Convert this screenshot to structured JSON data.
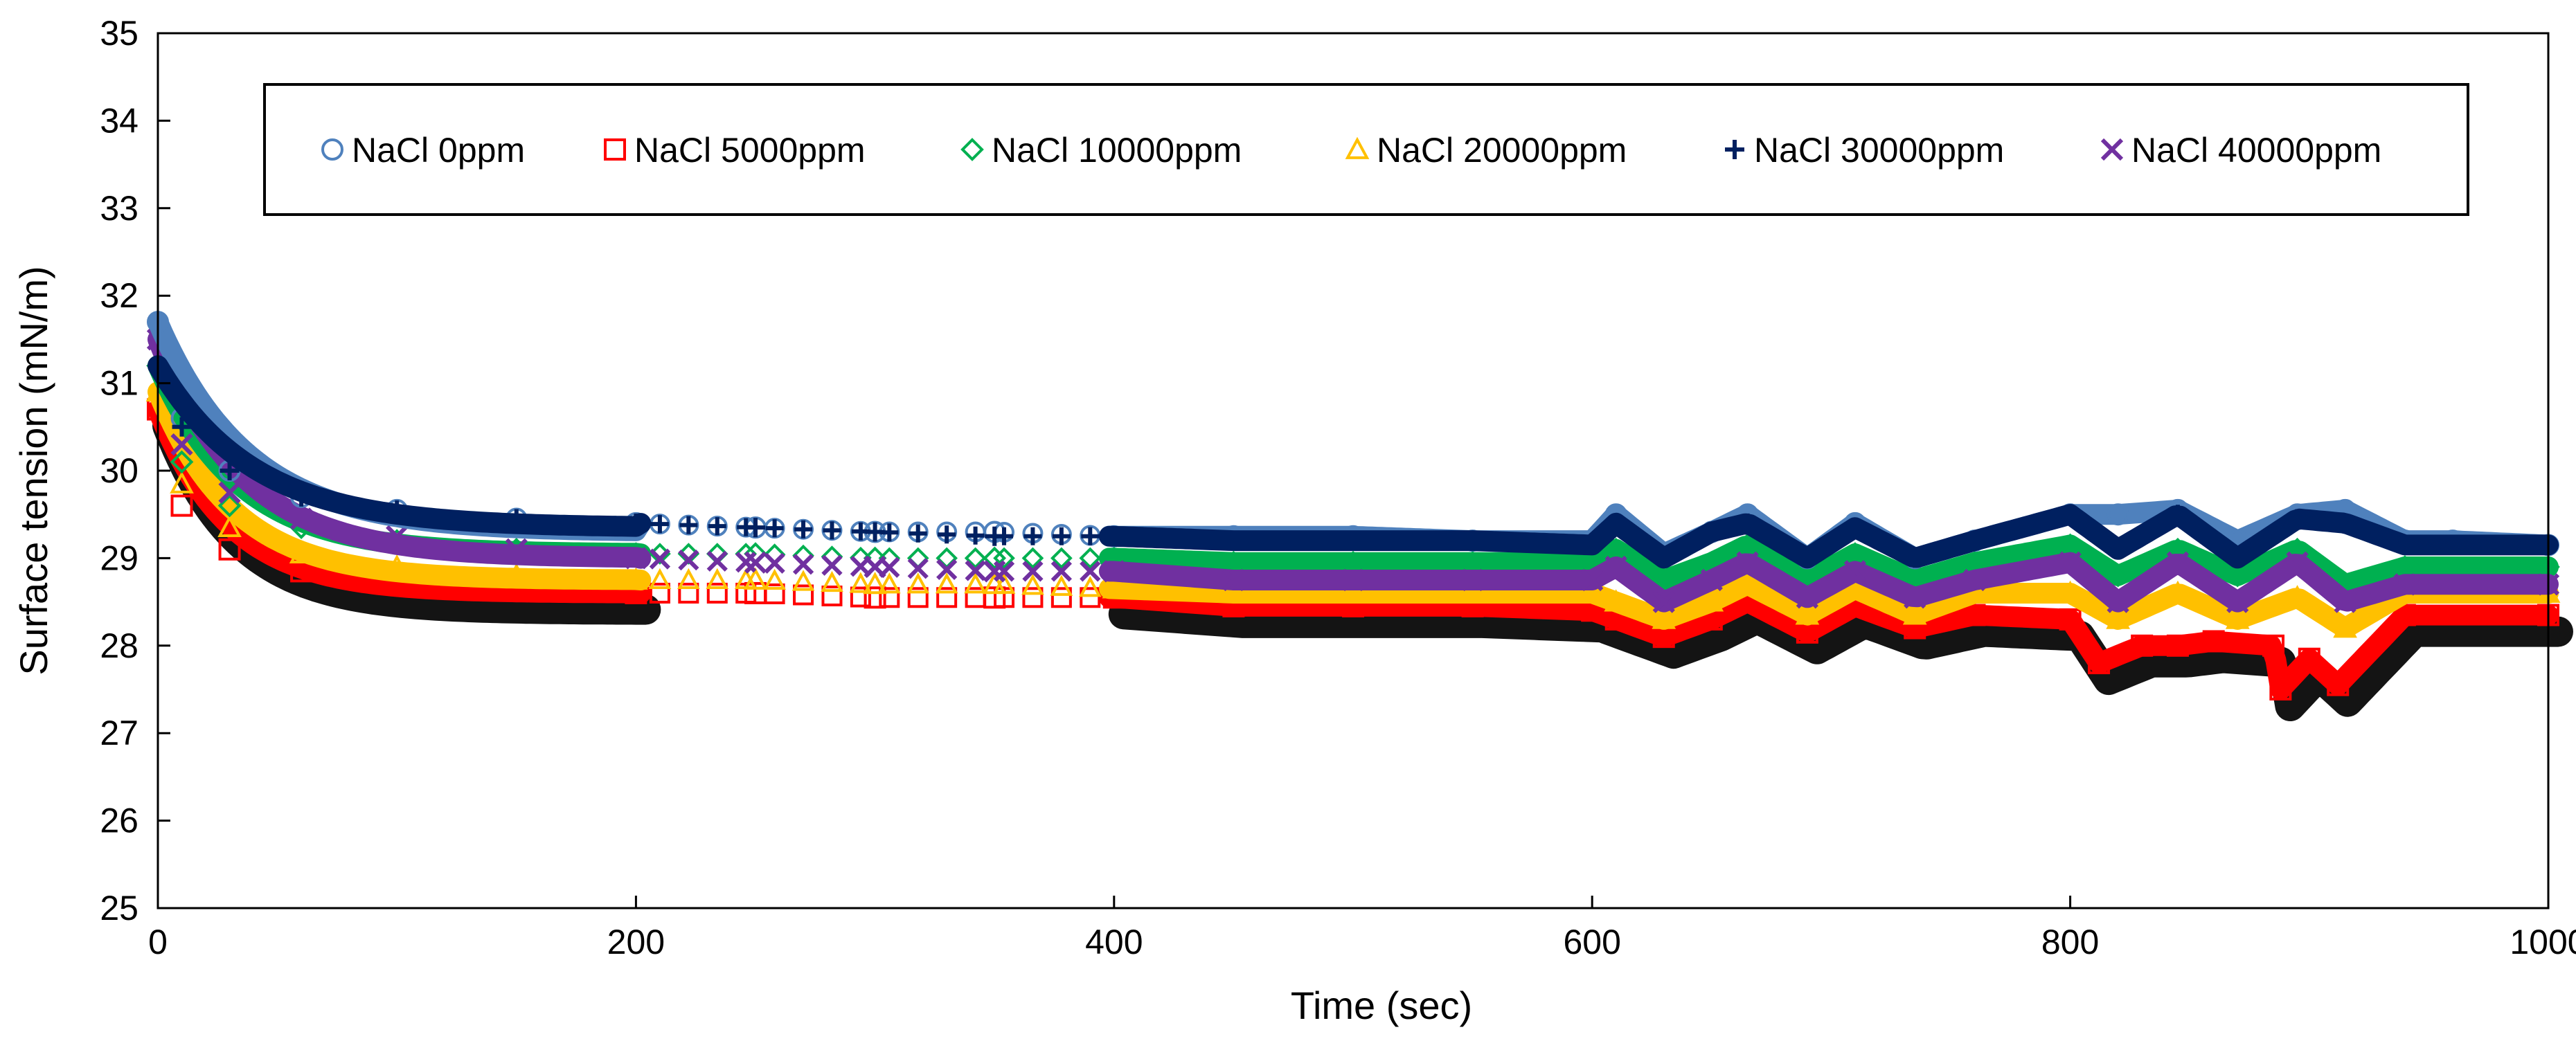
{
  "chart_data": {
    "type": "scatter",
    "title": "",
    "xlabel": "Time (sec)",
    "ylabel": "Surface tension (mN/m)",
    "xlim": [
      0,
      1000
    ],
    "ylim": [
      25,
      35
    ],
    "xticks": [
      0,
      200,
      400,
      600,
      800,
      1000
    ],
    "yticks": [
      25,
      26,
      27,
      28,
      29,
      30,
      31,
      32,
      33,
      34,
      35
    ],
    "grid": false,
    "legend_position": "top",
    "series": [
      {
        "name": "NaCl 0ppm",
        "marker": "circle",
        "color": "#4F81BD",
        "start": 31.7,
        "plateau": 29.3,
        "decay": 38,
        "x": [
          0,
          10,
          30,
          60,
          100,
          150,
          200,
          250,
          300,
          350,
          400,
          450,
          500,
          550,
          600,
          610,
          630,
          650,
          665,
          690,
          710,
          735,
          760,
          800,
          820,
          845,
          870,
          895,
          915,
          940,
          960,
          1000
        ],
        "y": [
          31.7,
          30.6,
          30.0,
          29.7,
          29.55,
          29.45,
          29.4,
          29.35,
          29.3,
          29.3,
          29.25,
          29.25,
          29.25,
          29.2,
          29.2,
          29.5,
          29.05,
          29.3,
          29.5,
          29.0,
          29.4,
          29.0,
          29.2,
          29.5,
          29.5,
          29.55,
          29.2,
          29.5,
          29.55,
          29.2,
          29.2,
          29.15
        ]
      },
      {
        "name": "NaCl 5000ppm",
        "marker": "square",
        "color": "#FF0000",
        "start": 30.7,
        "plateau": 28.6,
        "decay": 30,
        "x": [
          0,
          10,
          30,
          60,
          100,
          150,
          200,
          250,
          300,
          350,
          400,
          450,
          500,
          550,
          600,
          610,
          630,
          650,
          665,
          690,
          710,
          735,
          760,
          800,
          812,
          830,
          845,
          860,
          885,
          888,
          900,
          912,
          940,
          1000
        ],
        "y": [
          30.7,
          29.6,
          29.1,
          28.85,
          28.7,
          28.65,
          28.6,
          28.6,
          28.55,
          28.55,
          28.55,
          28.45,
          28.45,
          28.45,
          28.4,
          28.3,
          28.1,
          28.3,
          28.5,
          28.15,
          28.45,
          28.2,
          28.35,
          28.3,
          27.8,
          28.0,
          28.0,
          28.05,
          28.0,
          27.5,
          27.85,
          27.55,
          28.35,
          28.35
        ]
      },
      {
        "name": "NaCl 10000ppm",
        "marker": "diamond",
        "color": "#00B050",
        "start": 31.2,
        "plateau": 29.05,
        "decay": 34,
        "x": [
          0,
          10,
          30,
          60,
          100,
          150,
          200,
          250,
          300,
          350,
          400,
          450,
          500,
          550,
          600,
          610,
          630,
          650,
          665,
          690,
          710,
          735,
          760,
          800,
          820,
          845,
          870,
          895,
          915,
          940,
          1000
        ],
        "y": [
          31.2,
          30.1,
          29.6,
          29.35,
          29.2,
          29.1,
          29.05,
          29.05,
          29.0,
          29.0,
          29.0,
          28.95,
          28.95,
          28.95,
          28.95,
          29.1,
          28.75,
          28.95,
          29.15,
          28.75,
          29.05,
          28.75,
          28.95,
          29.15,
          28.8,
          29.1,
          28.8,
          29.1,
          28.7,
          28.9,
          28.9
        ]
      },
      {
        "name": "NaCl 20000ppm",
        "marker": "triangle",
        "color": "#FFC000",
        "start": 30.9,
        "plateau": 28.75,
        "decay": 32,
        "x": [
          0,
          10,
          30,
          60,
          100,
          150,
          200,
          250,
          300,
          350,
          400,
          450,
          500,
          550,
          600,
          610,
          630,
          650,
          665,
          690,
          710,
          735,
          760,
          800,
          820,
          845,
          870,
          895,
          915,
          940,
          1000
        ],
        "y": [
          30.9,
          29.85,
          29.35,
          29.05,
          28.9,
          28.8,
          28.75,
          28.75,
          28.7,
          28.7,
          28.65,
          28.6,
          28.6,
          28.6,
          28.6,
          28.5,
          28.3,
          28.5,
          28.7,
          28.35,
          28.65,
          28.35,
          28.6,
          28.6,
          28.3,
          28.6,
          28.3,
          28.55,
          28.2,
          28.6,
          28.6
        ]
      },
      {
        "name": "NaCl 30000ppm",
        "marker": "plus",
        "color": "#002060",
        "start": 31.2,
        "plateau": 29.35,
        "decay": 40,
        "x": [
          0,
          10,
          30,
          60,
          100,
          150,
          200,
          250,
          300,
          350,
          400,
          450,
          500,
          550,
          600,
          610,
          630,
          650,
          665,
          690,
          710,
          735,
          760,
          800,
          820,
          845,
          870,
          895,
          915,
          940,
          1000
        ],
        "y": [
          31.2,
          30.5,
          30.0,
          29.7,
          29.55,
          29.45,
          29.4,
          29.35,
          29.3,
          29.25,
          29.25,
          29.2,
          29.2,
          29.2,
          29.15,
          29.4,
          29.0,
          29.3,
          29.4,
          29.0,
          29.35,
          29.0,
          29.2,
          29.5,
          29.1,
          29.5,
          29.0,
          29.45,
          29.4,
          29.15,
          29.15
        ]
      },
      {
        "name": "NaCl 40000ppm",
        "marker": "x",
        "color": "#7030A0",
        "start": 31.5,
        "plateau": 29.0,
        "decay": 36,
        "x": [
          0,
          10,
          30,
          60,
          100,
          150,
          200,
          250,
          300,
          350,
          400,
          450,
          500,
          550,
          600,
          610,
          630,
          650,
          665,
          690,
          710,
          735,
          760,
          800,
          820,
          845,
          870,
          895,
          915,
          940,
          1000
        ],
        "y": [
          31.5,
          30.3,
          29.75,
          29.45,
          29.25,
          29.1,
          29.0,
          28.95,
          28.9,
          28.85,
          28.85,
          28.75,
          28.75,
          28.75,
          28.75,
          28.9,
          28.5,
          28.75,
          28.95,
          28.55,
          28.85,
          28.55,
          28.75,
          28.95,
          28.5,
          28.95,
          28.5,
          28.95,
          28.5,
          28.7,
          28.7
        ]
      }
    ]
  }
}
